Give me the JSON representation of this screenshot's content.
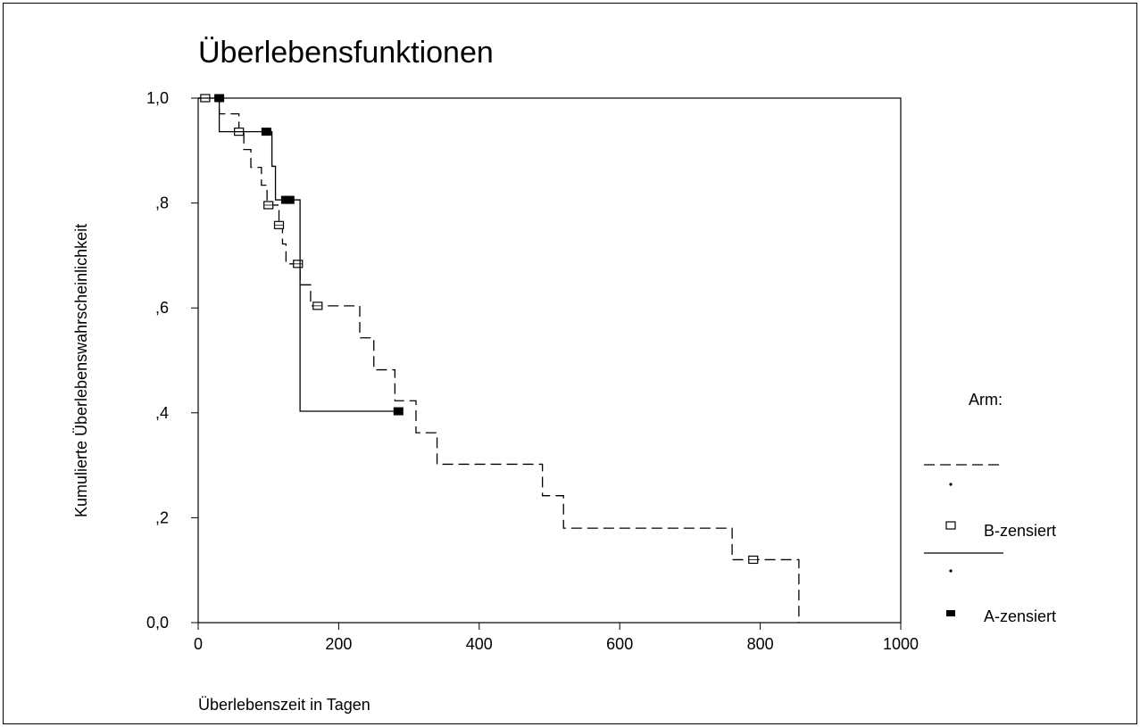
{
  "chart_data": {
    "type": "line",
    "title": "Überlebensfunktionen",
    "xlabel": "Überlebenszeit in Tagen",
    "ylabel": "Kumulierte Überlebenswahrscheinlichkeit",
    "xlim": [
      0,
      1000
    ],
    "ylim": [
      0,
      1
    ],
    "x_ticks": [
      0,
      200,
      400,
      600,
      800,
      1000
    ],
    "y_ticks": [
      0,
      0.2,
      0.4,
      0.6,
      0.8,
      1.0
    ],
    "x_tick_labels": [
      "0",
      "200",
      "400",
      "600",
      "800",
      "1000"
    ],
    "y_tick_labels": [
      "0,0",
      ",2",
      ",4",
      ",6",
      ",8",
      "1,0"
    ],
    "grid": false,
    "legend_position": "right",
    "legend_title": "Arm:",
    "series": [
      {
        "label": "B",
        "style": "dashed",
        "steps": [
          [
            0,
            1.0
          ],
          [
            30,
            0.97
          ],
          [
            58,
            0.936
          ],
          [
            65,
            0.902
          ],
          [
            75,
            0.868
          ],
          [
            90,
            0.834
          ],
          [
            98,
            0.8
          ],
          [
            103,
            0.796
          ],
          [
            115,
            0.758
          ],
          [
            120,
            0.722
          ],
          [
            125,
            0.684
          ],
          [
            145,
            0.644
          ],
          [
            160,
            0.604
          ],
          [
            230,
            0.543
          ],
          [
            250,
            0.482
          ],
          [
            280,
            0.423
          ],
          [
            310,
            0.362
          ],
          [
            340,
            0.302
          ],
          [
            490,
            0.242
          ],
          [
            520,
            0.18
          ],
          [
            760,
            0.12
          ],
          [
            855,
            0.0
          ]
        ],
        "end_x": 855,
        "censored": [
          [
            10,
            1.0
          ],
          [
            58,
            0.936
          ],
          [
            100,
            0.796
          ],
          [
            115,
            0.758
          ],
          [
            142,
            0.684
          ],
          [
            170,
            0.604
          ],
          [
            790,
            0.12
          ]
        ]
      },
      {
        "label": "A",
        "style": "solid",
        "steps": [
          [
            0,
            1.0
          ],
          [
            30,
            0.936
          ],
          [
            105,
            0.87
          ],
          [
            110,
            0.806
          ],
          [
            145,
            0.403
          ]
        ],
        "end_x": 290,
        "censored": [
          [
            30,
            1.0
          ],
          [
            97,
            0.936
          ],
          [
            125,
            0.806
          ],
          [
            130,
            0.806
          ],
          [
            285,
            0.403
          ]
        ]
      }
    ],
    "legend": [
      {
        "line": "dashed",
        "marker": "dot",
        "label": ""
      },
      {
        "marker": "open-square",
        "label": "B-zensiert"
      },
      {
        "line": "solid",
        "marker": "dot",
        "label": ""
      },
      {
        "marker": "filled-square",
        "label": "A-zensiert"
      }
    ]
  }
}
